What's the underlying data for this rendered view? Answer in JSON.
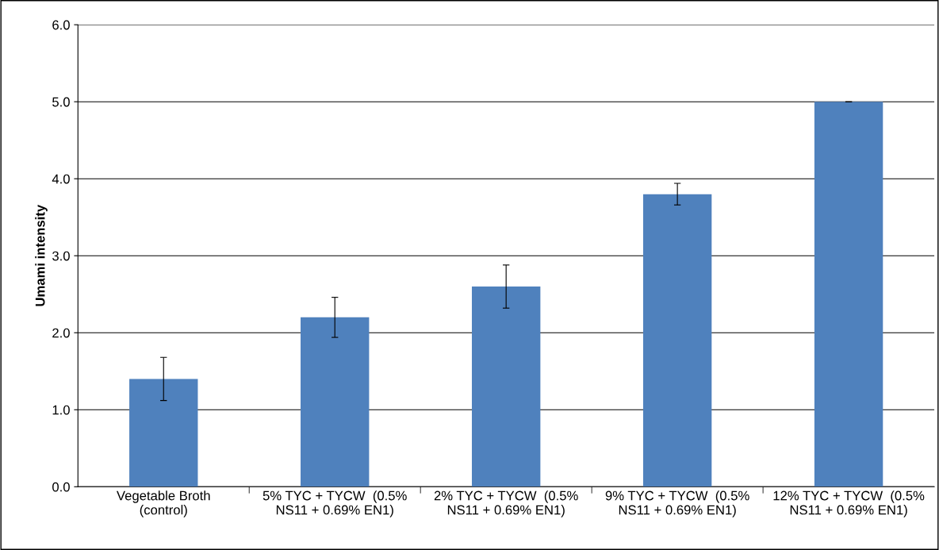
{
  "chart_data": {
    "type": "bar",
    "ylabel": "Umami intensity",
    "categories": [
      "Vegetable Broth (control)",
      "5% TYC + TYCW  (0.5% NS11 + 0.69% EN1)",
      "2% TYC + TYCW  (0.5% NS11 + 0.69% EN1)",
      "9% TYC + TYCW  (0.5% NS11 + 0.69% EN1)",
      "12% TYC + TYCW  (0.5% NS11 + 0.69% EN1)"
    ],
    "values": [
      1.4,
      2.2,
      2.6,
      3.8,
      5.0
    ],
    "errors": [
      0.28,
      0.26,
      0.28,
      0.14,
      0
    ],
    "color": "#4f81bd",
    "ylim": [
      0,
      6
    ],
    "yticks": [
      {
        "value": 0,
        "label": "0.0"
      },
      {
        "value": 1,
        "label": "1.0"
      },
      {
        "value": 2,
        "label": "2.0"
      },
      {
        "value": 3,
        "label": "3.0"
      },
      {
        "value": 4,
        "label": "4.0"
      },
      {
        "value": 5,
        "label": "5.0"
      },
      {
        "value": 6,
        "label": "6.0"
      }
    ],
    "grid": "y"
  }
}
